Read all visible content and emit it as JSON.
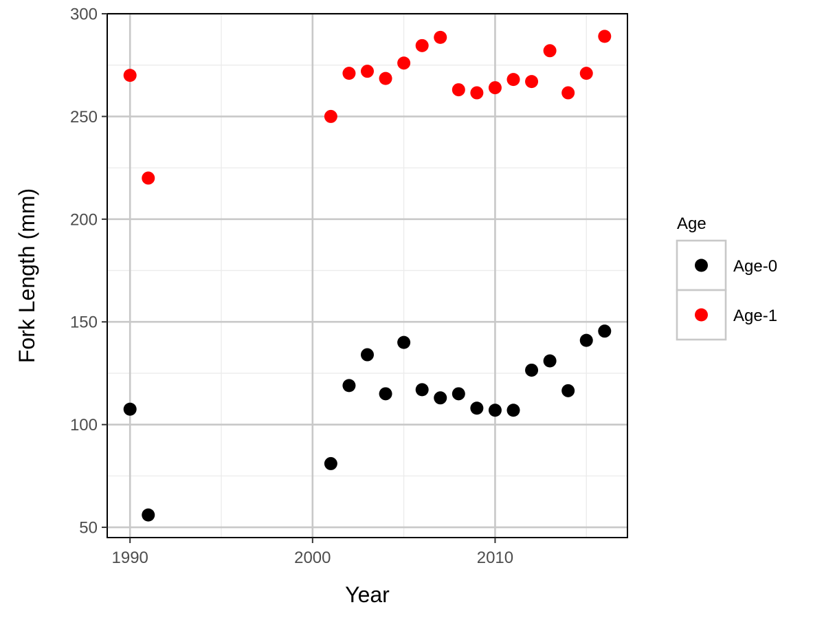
{
  "chart_data": {
    "type": "scatter",
    "xlabel": "Year",
    "ylabel": "Fork Length (mm)",
    "xlim": [
      1988.75,
      2017.25
    ],
    "ylim": [
      45,
      300
    ],
    "x_ticks": [
      1990,
      2000,
      2010
    ],
    "x_tick_labels": [
      "1990",
      "2000",
      "2010"
    ],
    "y_ticks": [
      50,
      100,
      150,
      200,
      250,
      300
    ],
    "y_tick_labels": [
      "50",
      "100",
      "150",
      "200",
      "250",
      "300"
    ],
    "grid": true,
    "legend": {
      "title": "Age",
      "position": "right"
    },
    "series": [
      {
        "name": "Age-0",
        "color": "#000000",
        "points": [
          [
            1990,
            107.5
          ],
          [
            1991,
            56
          ],
          [
            2001,
            81
          ],
          [
            2002,
            119
          ],
          [
            2003,
            134
          ],
          [
            2004,
            115
          ],
          [
            2005,
            140
          ],
          [
            2006,
            117
          ],
          [
            2007,
            113
          ],
          [
            2008,
            115
          ],
          [
            2009,
            108
          ],
          [
            2010,
            107
          ],
          [
            2011,
            107
          ],
          [
            2012,
            126.5
          ],
          [
            2013,
            131
          ],
          [
            2014,
            116.5
          ],
          [
            2015,
            141
          ],
          [
            2016,
            145.5
          ]
        ]
      },
      {
        "name": "Age-1",
        "color": "#ff0000",
        "points": [
          [
            1990,
            270
          ],
          [
            1991,
            220
          ],
          [
            2001,
            250
          ],
          [
            2002,
            271
          ],
          [
            2003,
            272
          ],
          [
            2004,
            268.5
          ],
          [
            2005,
            276
          ],
          [
            2006,
            284.5
          ],
          [
            2007,
            288.5
          ],
          [
            2008,
            263
          ],
          [
            2009,
            261.5
          ],
          [
            2010,
            264
          ],
          [
            2011,
            268
          ],
          [
            2012,
            267
          ],
          [
            2013,
            282
          ],
          [
            2014,
            261.5
          ],
          [
            2015,
            271
          ],
          [
            2016,
            289
          ]
        ]
      }
    ]
  }
}
